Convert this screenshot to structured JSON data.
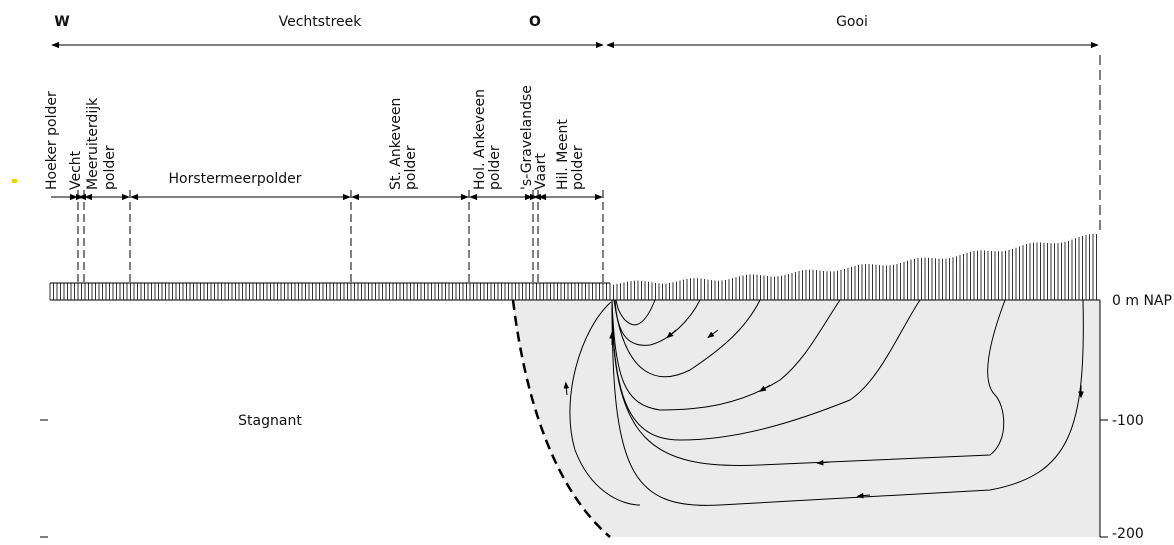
{
  "header": {
    "west": "W",
    "west_region": "Vechtstreek",
    "east": "O",
    "east_region": "Gooi"
  },
  "polders": [
    {
      "lines": [
        "Hoeker polder"
      ]
    },
    {
      "lines": [
        "Vecht"
      ]
    },
    {
      "lines": [
        "Meeruiterdijk",
        "polder"
      ]
    },
    {
      "lines": [
        "Horstermeerpolder"
      ]
    },
    {
      "lines": [
        "St. Ankeveen",
        "polder"
      ]
    },
    {
      "lines": [
        "Hol. Ankeveen",
        "polder"
      ]
    },
    {
      "lines": [
        "'s-Gravelandse",
        "Vaart"
      ]
    },
    {
      "lines": [
        "Hil. Meent",
        "polder"
      ]
    }
  ],
  "zone_label": "Stagnant",
  "depth_labels": [
    "0 m NAP",
    "-100",
    "-200"
  ]
}
